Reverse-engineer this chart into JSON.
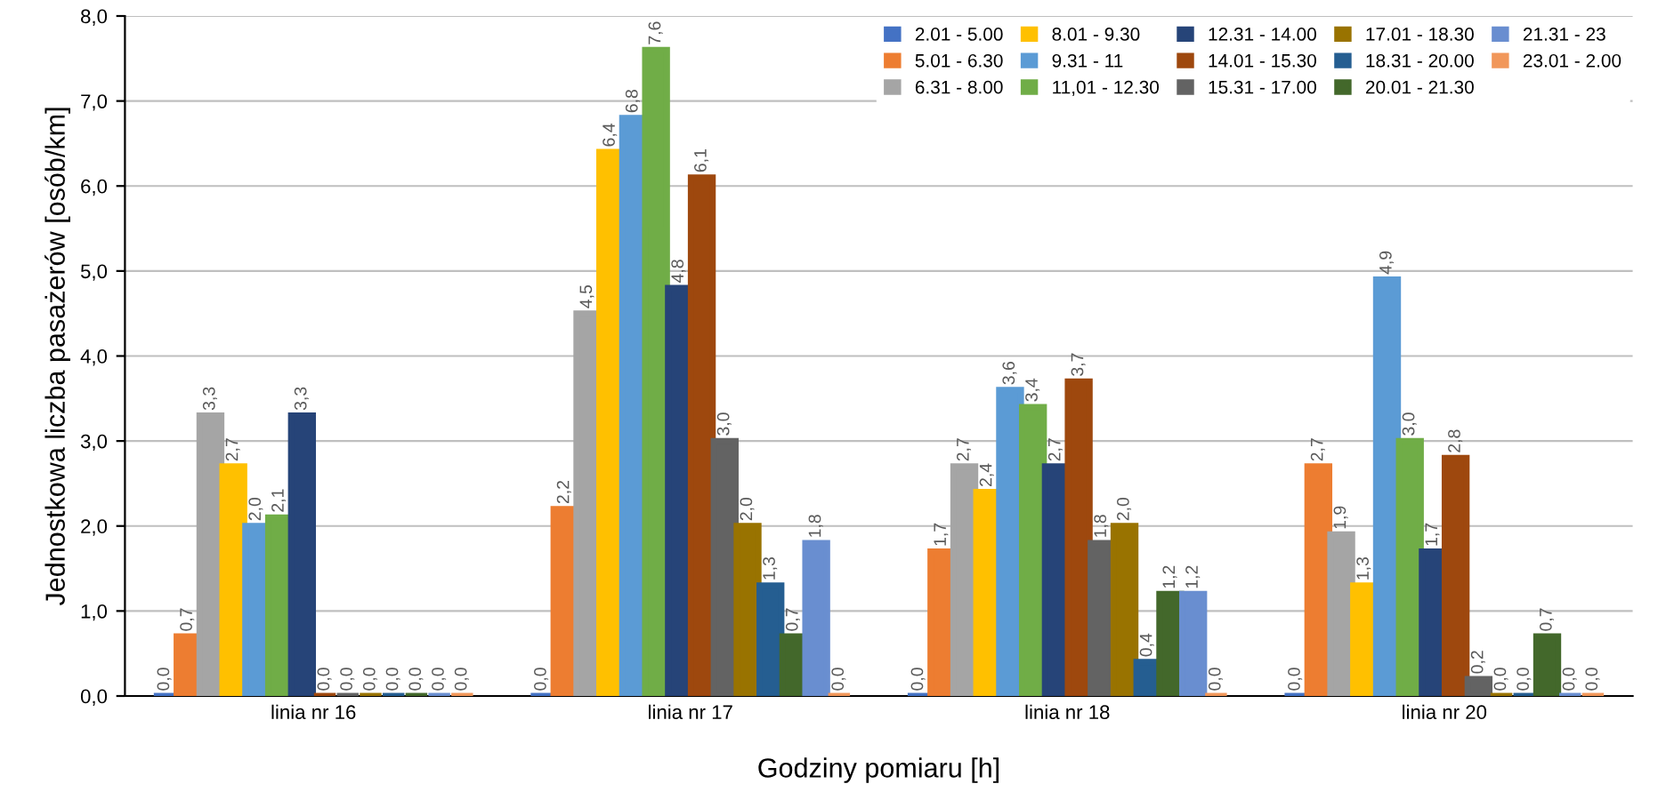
{
  "chart_data": {
    "type": "bar",
    "xlabel": "Godziny pomiaru [h]",
    "ylabel": "Jednostkowa liczba pasażerów [osób/km]",
    "categories": [
      "linia nr 16",
      "linia nr 17",
      "linia nr 18",
      "linia nr 20"
    ],
    "series": [
      {
        "name": "2.01 - 5.00",
        "color": "#4472c4",
        "values": [
          0.0,
          0.0,
          0.0,
          0.0
        ],
        "value_labels": [
          "0,0",
          "0,0",
          "0,0",
          "0,0"
        ]
      },
      {
        "name": "5.01 - 6.30",
        "color": "#ed7d31",
        "values": [
          0.7,
          2.2,
          1.7,
          2.7
        ],
        "value_labels": [
          "0,7",
          "2,2",
          "1,7",
          "2,7"
        ]
      },
      {
        "name": "6.31 - 8.00",
        "color": "#a5a5a5",
        "values": [
          3.3,
          4.5,
          2.7,
          1.9
        ],
        "value_labels": [
          "3,3",
          "4,5",
          "2,7",
          "1,9"
        ]
      },
      {
        "name": "8.01 - 9.30",
        "color": "#ffc000",
        "values": [
          2.7,
          6.4,
          2.4,
          1.3
        ],
        "value_labels": [
          "2,7",
          "6,4",
          "2,4",
          "1,3"
        ]
      },
      {
        "name": "9.31 - 11",
        "color": "#5b9bd5",
        "values": [
          2.0,
          6.8,
          3.6,
          4.9
        ],
        "value_labels": [
          "2,0",
          "6,8",
          "3,6",
          "4,9"
        ]
      },
      {
        "name": "11,01 - 12.30",
        "color": "#70ad47",
        "values": [
          2.1,
          7.6,
          3.4,
          3.0
        ],
        "value_labels": [
          "2,1",
          "7,6",
          "3,4",
          "3,0"
        ]
      },
      {
        "name": "12.31 - 14.00",
        "color": "#264478",
        "values": [
          3.3,
          4.8,
          2.7,
          1.7
        ],
        "value_labels": [
          "3,3",
          "4,8",
          "2,7",
          "1,7"
        ]
      },
      {
        "name": "14.01 - 15.30",
        "color": "#9e480e",
        "values": [
          0.0,
          6.1,
          3.7,
          2.8
        ],
        "value_labels": [
          "0,0",
          "6,1",
          "3,7",
          "2,8"
        ]
      },
      {
        "name": "15.31 - 17.00",
        "color": "#636363",
        "values": [
          0.0,
          3.0,
          1.8,
          0.2
        ],
        "value_labels": [
          "0,0",
          "3,0",
          "1,8",
          "0,2"
        ]
      },
      {
        "name": "17.01 - 18.30",
        "color": "#997300",
        "values": [
          0.0,
          2.0,
          2.0,
          0.0
        ],
        "value_labels": [
          "0,0",
          "2,0",
          "2,0",
          "0,0"
        ]
      },
      {
        "name": "18.31 - 20.00",
        "color": "#255e91",
        "values": [
          0.0,
          1.3,
          0.4,
          0.0
        ],
        "value_labels": [
          "0,0",
          "1,3",
          "0,4",
          "0,0"
        ]
      },
      {
        "name": "20.01 - 21.30",
        "color": "#43682b",
        "values": [
          0.0,
          0.7,
          1.2,
          0.7
        ],
        "value_labels": [
          "0,0",
          "0,7",
          "1,2",
          "0,7"
        ]
      },
      {
        "name": "21.31 - 23",
        "color": "#698ed0",
        "values": [
          0.0,
          1.8,
          1.2,
          0.0
        ],
        "value_labels": [
          "0,0",
          "1,8",
          "1,2",
          "0,0"
        ]
      },
      {
        "name": "23.01 - 2.00",
        "color": "#f1975a",
        "values": [
          0.0,
          0.0,
          0.0,
          0.0
        ],
        "value_labels": [
          "0,0",
          "0,0",
          "0,0",
          "0,0"
        ]
      }
    ],
    "ylim": [
      0,
      8
    ],
    "yticks": [
      {
        "value": 0,
        "label": "0,0"
      },
      {
        "value": 1,
        "label": "1,0"
      },
      {
        "value": 2,
        "label": "2,0"
      },
      {
        "value": 3,
        "label": "3,0"
      },
      {
        "value": 4,
        "label": "4,0"
      },
      {
        "value": 5,
        "label": "5,0"
      },
      {
        "value": 6,
        "label": "6,0"
      },
      {
        "value": 7,
        "label": "7,0"
      },
      {
        "value": 8,
        "label": "8,0"
      }
    ],
    "grid": "y",
    "legend": "top right"
  }
}
